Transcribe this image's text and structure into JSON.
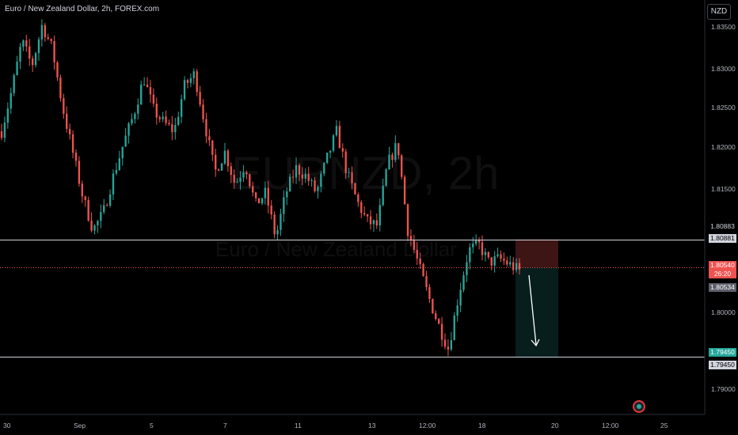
{
  "chart_data": {
    "type": "candlestick",
    "title": "Euro / New Zealand Dollar, 2h, FOREX.com",
    "watermark": "EURNZD, 2h",
    "watermark_sub": "Euro / New Zealand Dollar",
    "currency": "NZD",
    "y_ticks": [
      "1.83500",
      "1.83000",
      "1.82500",
      "1.82000",
      "1.81500",
      "1.80000",
      "1.79000"
    ],
    "x_ticks": [
      "30",
      "Sep",
      "5",
      "7",
      "11",
      "13",
      "12:00",
      "18",
      "20",
      "12:00",
      "25"
    ],
    "ylim": [
      1.7875,
      1.838
    ],
    "up_color": "#26a69a",
    "down_color": "#ef5350",
    "price_tags": {
      "upper_line": "1.80883",
      "upper_line_alt": "1.80881",
      "last_price": "1.80540",
      "countdown": "26:20",
      "bid": "1.80534",
      "lower_line": "1.79450",
      "lower_line_alt": "1.79450"
    },
    "levels": {
      "resistance": 1.80883,
      "current": 1.8054,
      "support": 1.7945
    },
    "short_position": {
      "entry": 1.8054,
      "stop": 1.80883,
      "target": 1.7945
    },
    "path": [
      1.822,
      1.827,
      1.833,
      1.83,
      1.835,
      1.832,
      1.825,
      1.8195,
      1.814,
      1.81,
      1.812,
      1.8165,
      1.8205,
      1.824,
      1.8285,
      1.8245,
      1.823,
      1.822,
      1.8275,
      1.829,
      1.823,
      1.817,
      1.8195,
      1.8155,
      1.818,
      1.813,
      1.8145,
      1.809,
      1.8145,
      1.8175,
      1.8165,
      1.8145,
      1.8185,
      1.822,
      1.817,
      1.8135,
      1.811,
      1.8105,
      1.818,
      1.8205,
      1.81,
      1.806,
      1.802,
      1.7985,
      1.7955,
      1.802,
      1.8075,
      1.8082,
      1.806,
      1.8065,
      1.8058,
      1.805
    ],
    "path_points": 52
  }
}
